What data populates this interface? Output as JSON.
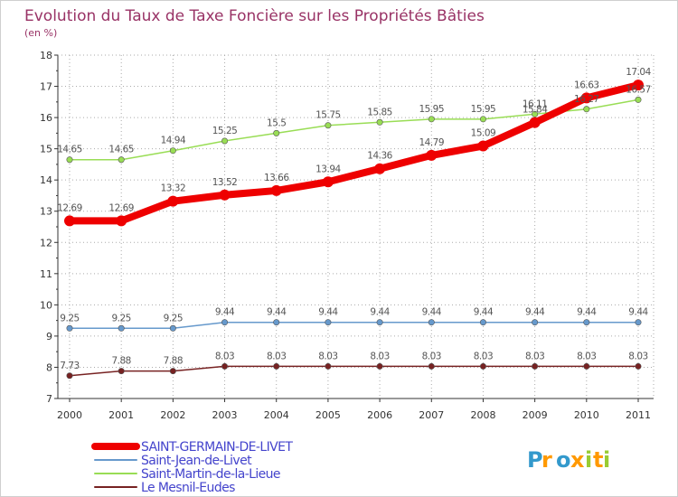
{
  "chart_data": {
    "type": "line",
    "title": "Evolution du Taux de Taxe Foncière sur les Propriétés Bâties",
    "ylabel": "(en %)",
    "xlabel": "",
    "categories": [
      "2000",
      "2001",
      "2002",
      "2003",
      "2004",
      "2005",
      "2006",
      "2007",
      "2008",
      "2009",
      "2010",
      "2011"
    ],
    "ylim": [
      7,
      18
    ],
    "yticks": [
      7,
      8,
      9,
      10,
      11,
      12,
      13,
      14,
      15,
      16,
      17,
      18
    ],
    "grid": true,
    "legend_position": "bottom-left",
    "series": [
      {
        "name": "SAINT-GERMAIN-DE-LIVET",
        "color": "#ee0000",
        "values": [
          12.69,
          12.69,
          13.32,
          13.52,
          13.66,
          13.94,
          14.36,
          14.79,
          15.09,
          15.84,
          16.63,
          17.04
        ],
        "labels": [
          "12.69",
          "12.69",
          "13.32",
          "13.52",
          "13.66",
          "13.94",
          "14.36",
          "14.79",
          "15.09",
          "15.84",
          "16.63",
          "17.04"
        ]
      },
      {
        "name": "Saint-Jean-de-Livet",
        "color": "#6699cc",
        "values": [
          9.25,
          9.25,
          9.25,
          9.44,
          9.44,
          9.44,
          9.44,
          9.44,
          9.44,
          9.44,
          9.44,
          9.44
        ],
        "labels": [
          "9.25",
          "9.25",
          "9.25",
          "9.44",
          "9.44",
          "9.44",
          "9.44",
          "9.44",
          "9.44",
          "9.44",
          "9.44",
          "9.44"
        ]
      },
      {
        "name": "Saint-Martin-de-la-Lieue",
        "color": "#99dd55",
        "values": [
          14.65,
          14.65,
          14.94,
          15.25,
          15.5,
          15.75,
          15.85,
          15.95,
          15.95,
          16.11,
          16.27,
          16.57
        ],
        "labels": [
          "14.65",
          "14.65",
          "14.94",
          "15.25",
          "15.5",
          "15.75",
          "15.85",
          "15.95",
          "15.95",
          "16.11",
          "16.27",
          "16.57"
        ]
      },
      {
        "name": "Le Mesnil-Eudes",
        "color": "#772222",
        "values": [
          7.73,
          7.88,
          7.88,
          8.03,
          8.03,
          8.03,
          8.03,
          8.03,
          8.03,
          8.03,
          8.03,
          8.03
        ],
        "labels": [
          "7.73",
          "7.88",
          "7.88",
          "8.03",
          "8.03",
          "8.03",
          "8.03",
          "8.03",
          "8.03",
          "8.03",
          "8.03",
          "8.03"
        ]
      }
    ]
  },
  "colors": {
    "title": "#993366",
    "legend_text": "#4444cc",
    "grid": "#aaaaaa",
    "logo_letters": [
      "#3399cc",
      "#ff9900",
      "#3399cc",
      "#ff9900",
      "#99cc33",
      "#ff9900",
      "#99cc33",
      "#ff9900"
    ]
  },
  "logo": {
    "text": "Proxiti"
  }
}
